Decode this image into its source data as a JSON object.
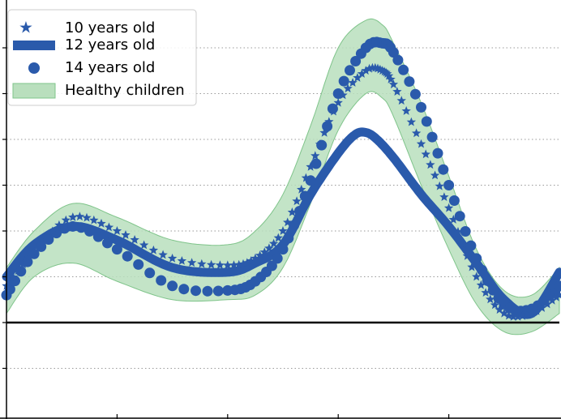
{
  "chart_data": {
    "type": "line",
    "title": "",
    "xlabel": "",
    "ylabel": "",
    "xlim": [
      0,
      100
    ],
    "ylim": [
      -2.0,
      7.0
    ],
    "y_gridlines": [
      -1,
      1,
      2,
      3,
      4,
      5,
      6
    ],
    "x_ticks": [
      20,
      40,
      60,
      80
    ],
    "zero_line": 0,
    "grid": "horizontal dotted",
    "legend_position": "top-left",
    "colors": {
      "series": "#2a5aab",
      "band_fill": "#b9dfbd",
      "band_edge": "#7fc48a"
    },
    "series": [
      {
        "name": "10 years old",
        "marker": "star",
        "x": [
          0,
          5,
          12,
          20,
          30,
          40,
          45,
          50,
          55,
          60,
          65,
          68,
          70,
          75,
          80,
          85,
          90,
          95,
          100
        ],
        "y": [
          0.8,
          1.55,
          2.3,
          2.0,
          1.4,
          1.25,
          1.4,
          2.0,
          3.4,
          4.8,
          5.5,
          5.5,
          5.2,
          3.9,
          2.5,
          1.0,
          0.2,
          0.2,
          0.6
        ]
      },
      {
        "name": "12 years old",
        "marker": "thick-line",
        "x": [
          0,
          5,
          12,
          20,
          30,
          40,
          45,
          50,
          55,
          60,
          63,
          65,
          67,
          70,
          75,
          80,
          85,
          90,
          95,
          100
        ],
        "y": [
          1.0,
          1.7,
          2.1,
          1.8,
          1.2,
          1.1,
          1.3,
          1.7,
          2.8,
          3.7,
          4.1,
          4.15,
          4.0,
          3.6,
          2.8,
          2.1,
          1.3,
          0.5,
          0.2,
          1.1
        ]
      },
      {
        "name": "14 years old",
        "marker": "circle",
        "x": [
          0,
          5,
          12,
          20,
          30,
          40,
          45,
          50,
          55,
          60,
          65,
          68,
          70,
          75,
          80,
          85,
          90,
          95,
          100
        ],
        "y": [
          0.6,
          1.5,
          2.1,
          1.6,
          0.8,
          0.7,
          0.9,
          1.6,
          3.1,
          5.0,
          6.0,
          6.1,
          5.9,
          4.7,
          3.0,
          1.4,
          0.4,
          0.3,
          0.8
        ]
      }
    ],
    "band": {
      "name": "Healthy children",
      "x": [
        0,
        5,
        12,
        20,
        30,
        40,
        45,
        50,
        55,
        60,
        65,
        68,
        70,
        75,
        80,
        85,
        90,
        95,
        100
      ],
      "lower": [
        0.2,
        1.0,
        1.3,
        0.9,
        0.5,
        0.5,
        0.6,
        1.2,
        2.6,
        4.2,
        5.0,
        4.9,
        4.5,
        3.0,
        1.6,
        0.4,
        -0.2,
        -0.2,
        0.2
      ],
      "upper": [
        1.2,
        2.0,
        2.6,
        2.3,
        1.8,
        1.7,
        2.0,
        2.8,
        4.3,
        6.0,
        6.6,
        6.5,
        6.1,
        4.8,
        3.2,
        1.6,
        0.7,
        0.6,
        1.2
      ]
    }
  }
}
